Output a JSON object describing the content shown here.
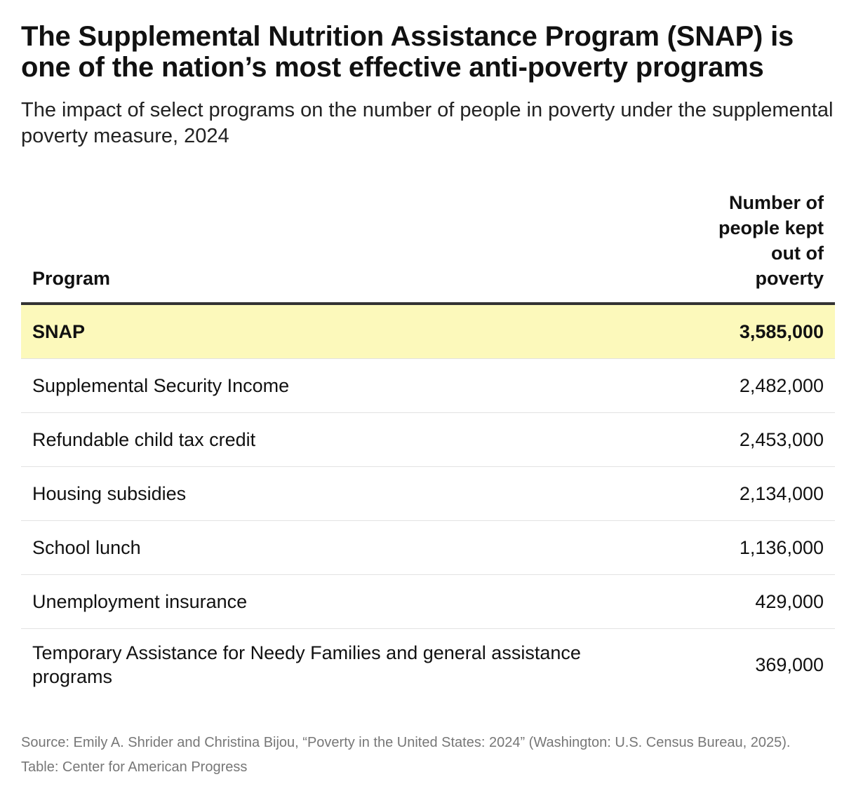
{
  "title": "The Supplemental Nutrition Assistance Program (SNAP) is one of the nation’s most effective anti-poverty programs",
  "subtitle": "The impact of select programs on the number of people in poverty under the supplemental poverty measure, 2024",
  "colors": {
    "highlight": "#fcf9bb",
    "header_rule": "#333333"
  },
  "chart_data": {
    "type": "table",
    "columns": [
      "Program",
      "Number of people kept out of poverty"
    ],
    "rows": [
      {
        "program": "SNAP",
        "value": "3,585,000",
        "highlighted": true
      },
      {
        "program": "Supplemental Security Income",
        "value": "2,482,000"
      },
      {
        "program": "Refundable child tax credit",
        "value": "2,453,000"
      },
      {
        "program": "Housing subsidies",
        "value": "2,134,000"
      },
      {
        "program": "School lunch",
        "value": "1,136,000"
      },
      {
        "program": "Unemployment insurance",
        "value": "429,000"
      },
      {
        "program": "Temporary Assistance for Needy Families and general assistance programs",
        "value": "369,000"
      }
    ]
  },
  "source": "Source: Emily A. Shrider and Christina Bijou, “Poverty in the United States: 2024” (Washington: U.S. Census Bureau, 2025).",
  "credit": "Table: Center for American Progress"
}
